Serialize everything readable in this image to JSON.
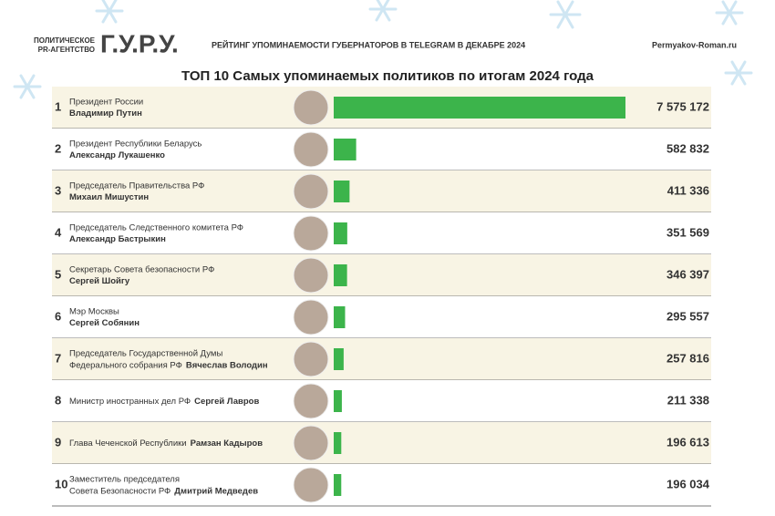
{
  "header": {
    "agency": [
      "ПОЛИТИЧЕСКОЕ",
      "PR-АГЕНТСТВО"
    ],
    "brand": "Г.У.Р.У.",
    "subtitle": "РЕЙТИНГ УПОМИНАЕМОСТИ ГУБЕРНАТОРОВ В TELEGRAM В ДЕКАБРЕ 2024",
    "site": "Permyakov-Roman.ru"
  },
  "chart_data": {
    "type": "bar",
    "orientation": "horizontal",
    "title": "ТОП 10 Самых упоминаемых политиков по итогам 2024 года",
    "ranks": [
      1,
      2,
      3,
      4,
      5,
      6,
      7,
      8,
      9,
      10
    ],
    "roles": [
      [
        "Президент России"
      ],
      [
        "Президент Республики Беларусь"
      ],
      [
        "Председатель Правительства РФ"
      ],
      [
        "Председатель Следственного комитета РФ"
      ],
      [
        "Секретарь Совета безопасности РФ"
      ],
      [
        "Мэр Москвы"
      ],
      [
        "Председатель Государственной Думы",
        "Федерального собрания РФ"
      ],
      [
        "Министр иностранных дел РФ"
      ],
      [
        "Глава Чеченской Республики"
      ],
      [
        "Заместитель председателя",
        "Совета Безопасности РФ"
      ]
    ],
    "name_on_new_line": [
      true,
      true,
      true,
      true,
      true,
      true,
      false,
      false,
      false,
      false
    ],
    "categories": [
      "Владимир Путин",
      "Александр Лукашенко",
      "Михаил Мишустин",
      "Александр Бастрыкин",
      "Сергей Шойгу",
      "Сергей Собянин",
      "Вячеслав Володин",
      "Сергей Лавров",
      "Рамзан Кадыров",
      "Дмитрий Медведев"
    ],
    "values": [
      7575172,
      582832,
      411336,
      351569,
      346397,
      295557,
      257816,
      211338,
      196613,
      196034
    ],
    "value_labels": [
      "7 575 172",
      "582 832",
      "411 336",
      "351 569",
      "346 397",
      "295 557",
      "257 816",
      "211 338",
      "196 613",
      "196 034"
    ],
    "color": "#3cb44b"
  }
}
